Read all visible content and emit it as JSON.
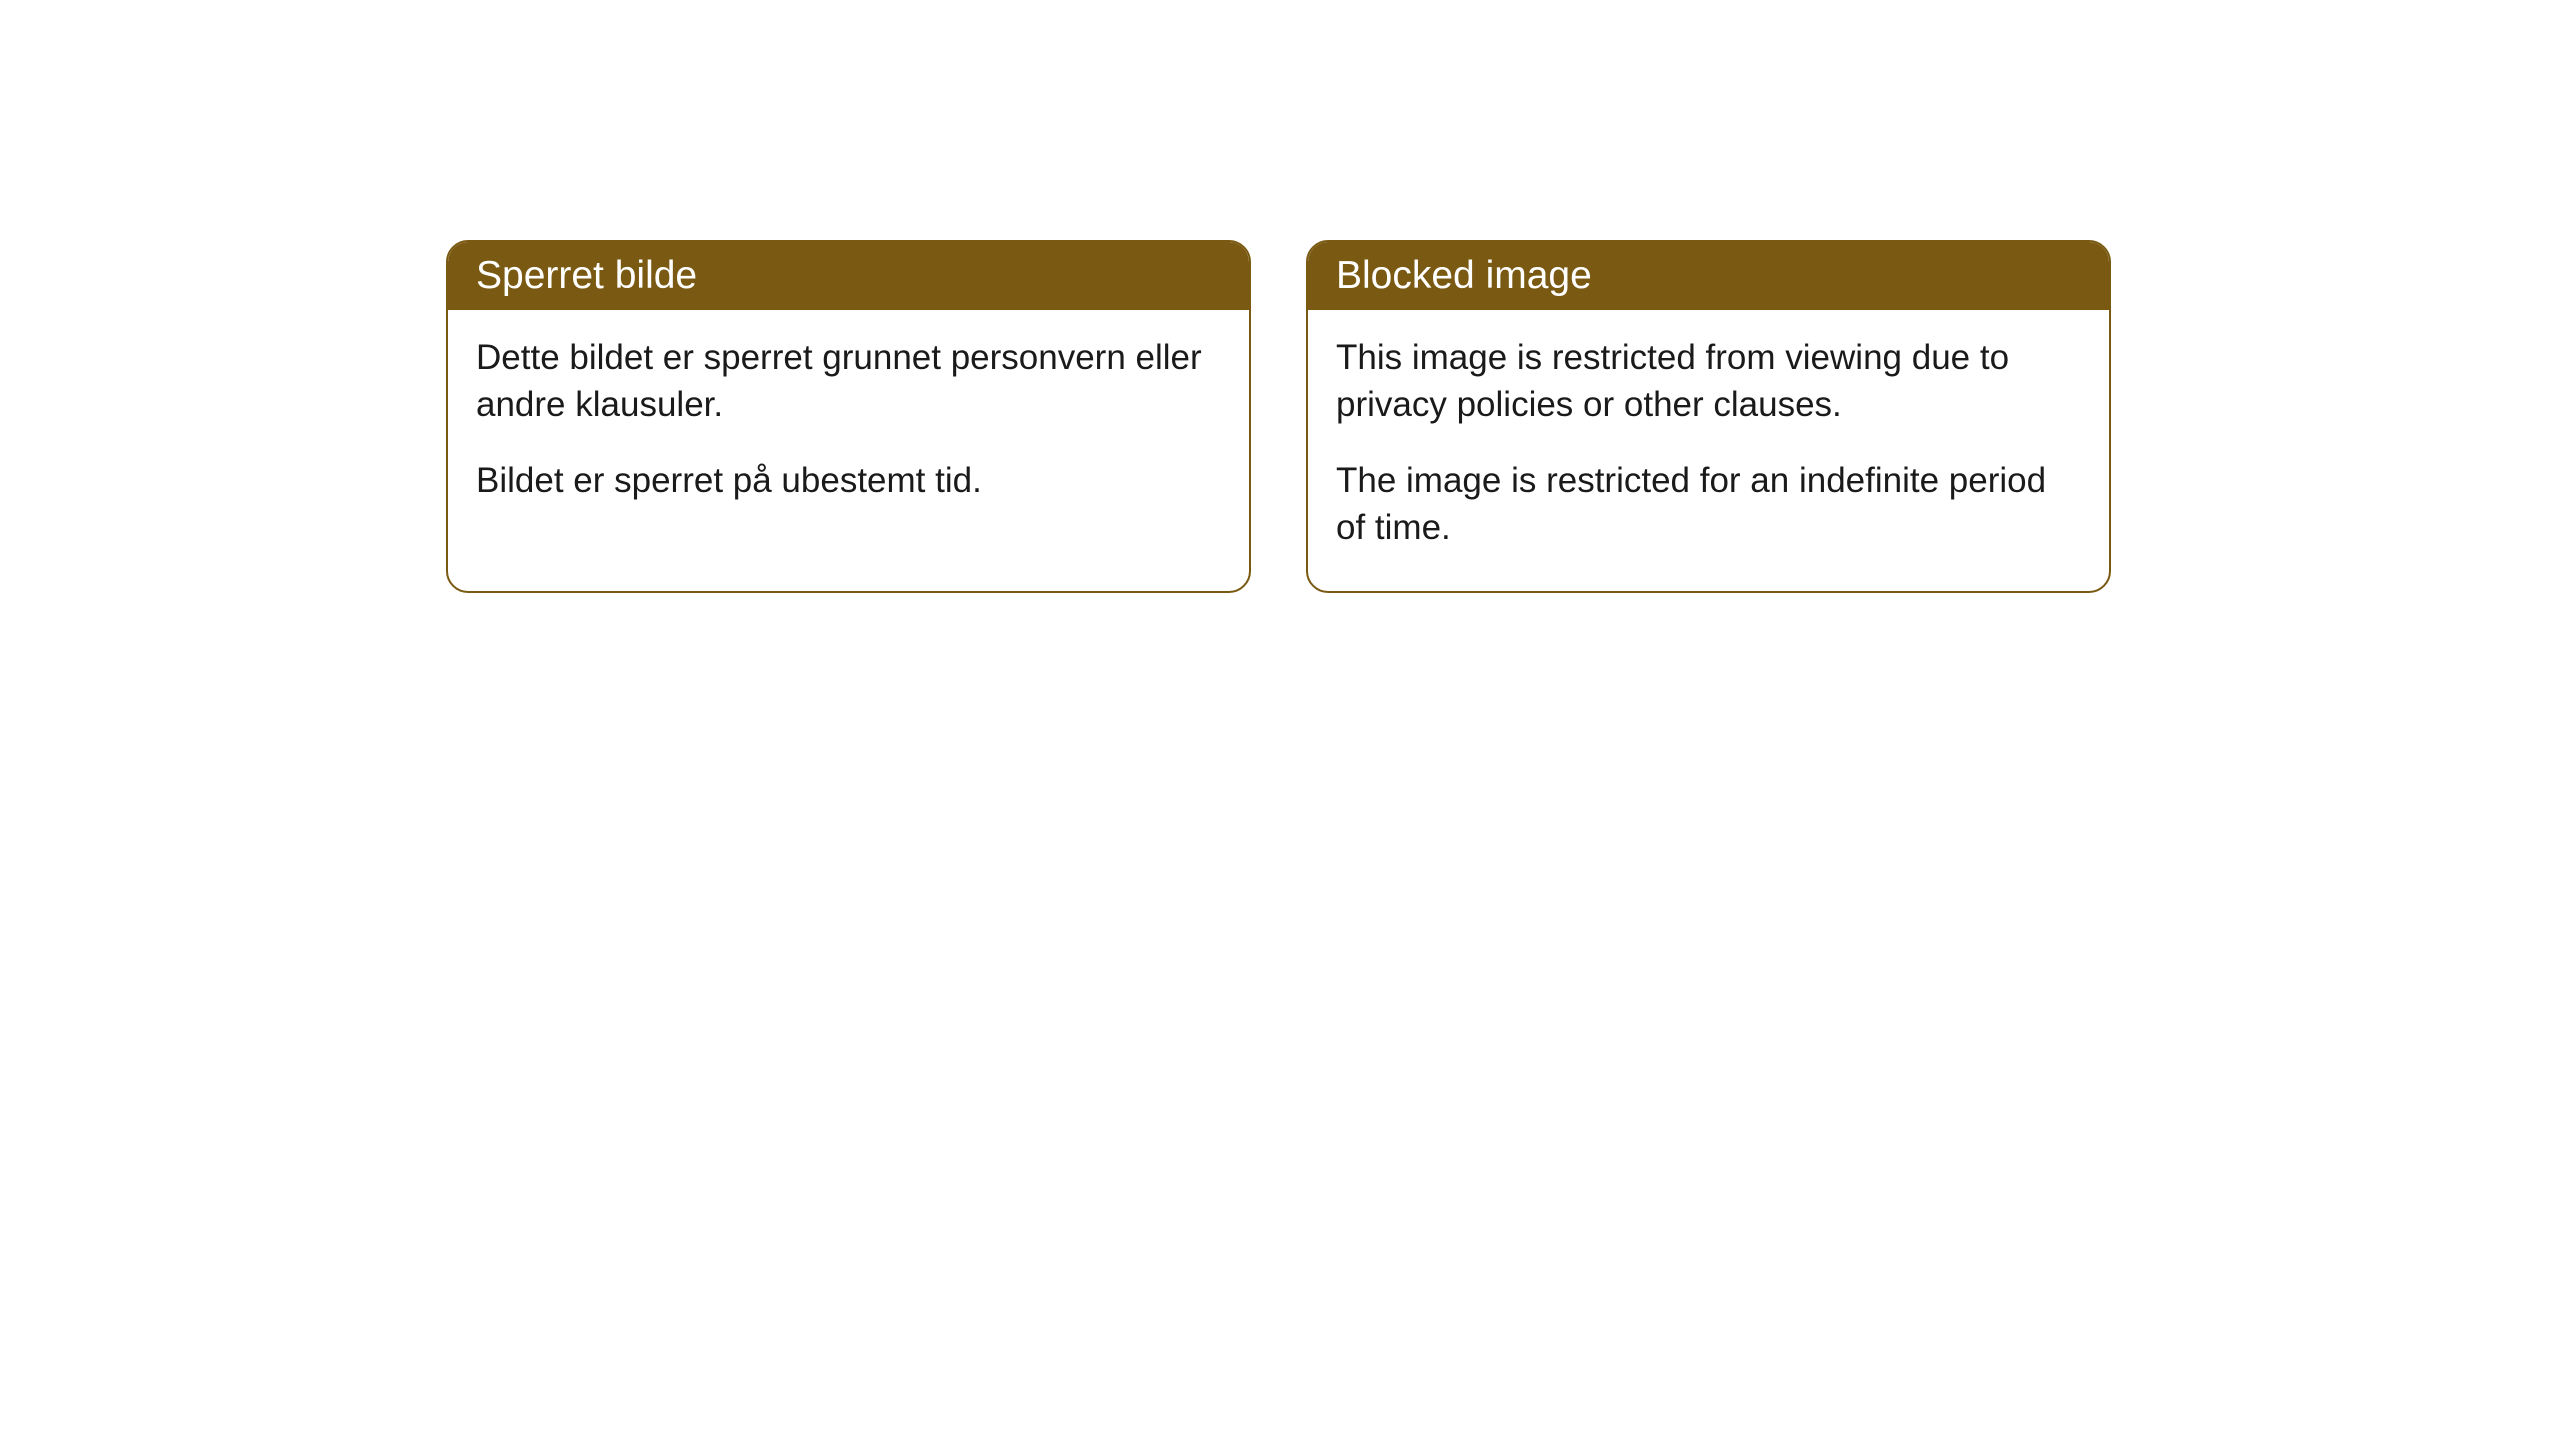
{
  "cards": [
    {
      "title": "Sperret bilde",
      "paragraph1": "Dette bildet er sperret grunnet personvern eller andre klausuler.",
      "paragraph2": "Bildet er sperret på ubestemt tid."
    },
    {
      "title": "Blocked image",
      "paragraph1": "This image is restricted from viewing due to privacy policies or other clauses.",
      "paragraph2": "The image is restricted for an indefinite period of time."
    }
  ],
  "colors": {
    "header_background": "#7a5a12",
    "header_text": "#ffffff",
    "body_text": "#1a1a1a",
    "border": "#7a5a12",
    "page_background": "#ffffff"
  }
}
